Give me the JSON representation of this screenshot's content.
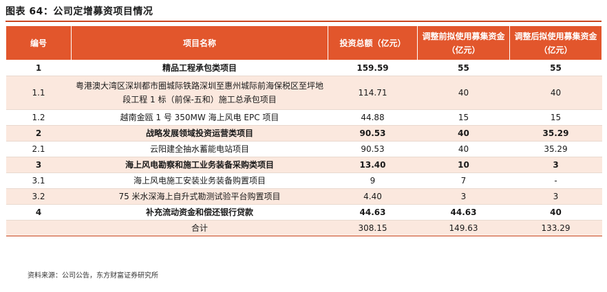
{
  "title": "图表 64：公司定增募资项目情况",
  "table": {
    "headers": [
      "编号",
      "项目名称",
      "投资总额（亿元）",
      "调整前拟使用募集资金（亿元）",
      "调整后拟使用募集资金（亿元）"
    ],
    "rows": [
      {
        "no": "1",
        "name": "精品工程承包类项目",
        "total": "159.59",
        "before": "55",
        "after": "55",
        "bold": true,
        "alt": false
      },
      {
        "no": "1.1",
        "name": "粤港澳大湾区深圳都市圈城际铁路深圳至惠州城际前海保税区至坪地段工程 1 标（前保-五和）施工总承包项目",
        "total": "114.71",
        "before": "40",
        "after": "40",
        "bold": false,
        "alt": true
      },
      {
        "no": "1.2",
        "name": "越南金瓯 1 号 350MW 海上风电 EPC 项目",
        "total": "44.88",
        "before": "15",
        "after": "15",
        "bold": false,
        "alt": false
      },
      {
        "no": "2",
        "name": "战略发展领域投资运营类项目",
        "total": "90.53",
        "before": "40",
        "after": "35.29",
        "bold": true,
        "alt": true
      },
      {
        "no": "2.1",
        "name": "云阳建全抽水蓄能电站项目",
        "total": "90.53",
        "before": "40",
        "after": "35.29",
        "bold": false,
        "alt": false
      },
      {
        "no": "3",
        "name": "海上风电勘察和施工业务装备采购类项目",
        "total": "13.40",
        "before": "10",
        "after": "3",
        "bold": true,
        "alt": true
      },
      {
        "no": "3.1",
        "name": "海上风电施工安装业务装备购置项目",
        "total": "9",
        "before": "7",
        "after": "-",
        "bold": false,
        "alt": false
      },
      {
        "no": "3.2",
        "name": "75 米水深海上自升式勘测试验平台购置项目",
        "total": "4.40",
        "before": "3",
        "after": "3",
        "bold": false,
        "alt": true
      },
      {
        "no": "4",
        "name": "补充流动资金和偿还银行贷款",
        "total": "44.63",
        "before": "44.63",
        "after": "40",
        "bold": true,
        "alt": false
      },
      {
        "no": "",
        "name": "合计",
        "total": "308.15",
        "before": "149.63",
        "after": "133.29",
        "bold": false,
        "alt": true,
        "total_row": true
      }
    ]
  },
  "source": "资料来源：公司公告，东方财富证券研究所"
}
